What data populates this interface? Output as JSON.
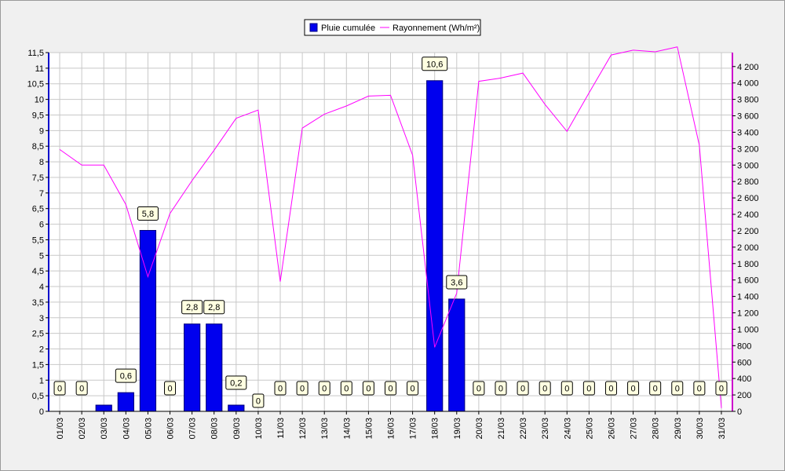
{
  "chart_data": {
    "type": "bar",
    "categories": [
      "01/03",
      "02/03",
      "03/03",
      "04/03",
      "05/03",
      "06/03",
      "07/03",
      "08/03",
      "09/03",
      "10/03",
      "11/03",
      "12/03",
      "13/03",
      "14/03",
      "15/03",
      "16/03",
      "17/03",
      "18/03",
      "19/03",
      "20/03",
      "21/03",
      "22/03",
      "23/03",
      "24/03",
      "25/03",
      "26/03",
      "27/03",
      "28/03",
      "29/03",
      "30/03",
      "31/03"
    ],
    "series": [
      {
        "name": "Pluie cumulée",
        "type": "bar",
        "axis": "left",
        "color": "#0000ee",
        "values": [
          0,
          0,
          0.2,
          0.6,
          5.8,
          0,
          2.8,
          2.8,
          0.2,
          0,
          0,
          0,
          0,
          0,
          0,
          0,
          0,
          10.6,
          3.6,
          0,
          0,
          0,
          0,
          0,
          0,
          0,
          0,
          0,
          0,
          0,
          0
        ],
        "labels": [
          "0",
          "0",
          "",
          "0,6",
          "5,8",
          "0",
          "2,8",
          "2,8",
          "0,2",
          "0",
          "0",
          "0",
          "0",
          "0",
          "0",
          "0",
          "0",
          "10,6",
          "3,6",
          "0",
          "0",
          "0",
          "0",
          "0",
          "0",
          "0",
          "0",
          "0",
          "0",
          "0",
          "0"
        ]
      },
      {
        "name": "Rayonnement (Wh/m²)",
        "type": "line",
        "axis": "right",
        "color": "#ff00ff",
        "values": [
          3190,
          3000,
          3000,
          2520,
          1640,
          2410,
          2810,
          3180,
          3570,
          3670,
          1580,
          3450,
          3620,
          3720,
          3840,
          3850,
          3120,
          780,
          1440,
          4020,
          4060,
          4120,
          3740,
          3410,
          3880,
          4340,
          4400,
          4380,
          4440,
          3240,
          40
        ]
      }
    ],
    "y_left": {
      "range": [
        0,
        11.5
      ],
      "ticks": [
        "0",
        "0,5",
        "1",
        "1,5",
        "2",
        "2,5",
        "3",
        "3,5",
        "4",
        "4,5",
        "5",
        "5,5",
        "6",
        "6,5",
        "7",
        "7,5",
        "8",
        "8,5",
        "9",
        "9,5",
        "10",
        "10,5",
        "11",
        "11,5"
      ]
    },
    "y_right": {
      "range": [
        0,
        4370
      ],
      "ticks": [
        "0",
        "200",
        "400",
        "600",
        "800",
        "1 000",
        "1 200",
        "1 400",
        "1 600",
        "1 800",
        "2 000",
        "2 200",
        "2 400",
        "2 600",
        "2 800",
        "3 000",
        "3 200",
        "3 400",
        "3 600",
        "3 800",
        "4 000",
        "4 200"
      ]
    },
    "grid": true,
    "legend_position": "top-center"
  }
}
